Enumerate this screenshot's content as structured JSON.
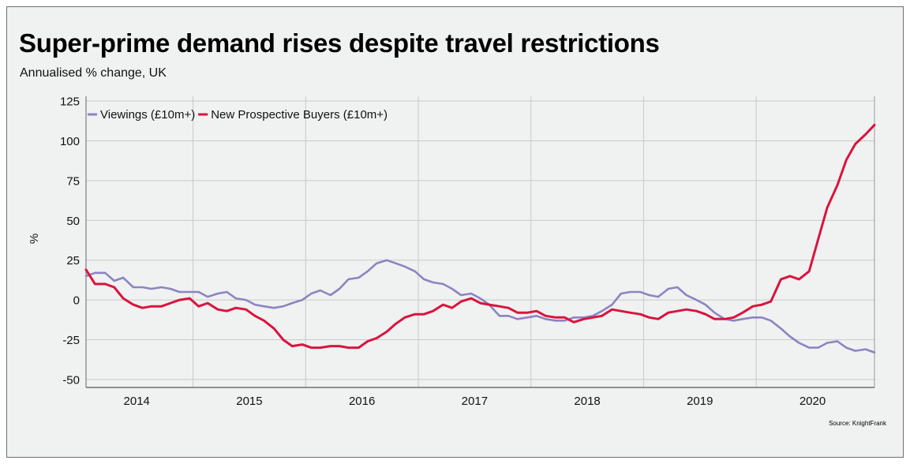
{
  "header": {
    "title": "Super-prime demand rises despite travel restrictions",
    "subtitle": "Annualised % change, UK"
  },
  "source": "Source: KnightFrank",
  "colors": {
    "viewings": "#8c84c2",
    "buyers": "#d9143e",
    "background": "#f0f1f1",
    "grid": "#c9c9c9"
  },
  "chart_data": {
    "type": "line",
    "title": "Super-prime demand rises despite travel restrictions",
    "subtitle": "Annualised % change, UK",
    "xlabel": "",
    "ylabel": "%",
    "ylim": [
      -55,
      128
    ],
    "yticks": [
      125,
      100,
      75,
      50,
      25,
      0,
      -25,
      -50
    ],
    "xlim": [
      2013.55,
      2020.55
    ],
    "x_year_boundaries": [
      2014.5,
      2015.5,
      2016.5,
      2017.5,
      2018.5,
      2019.5
    ],
    "x_tick_labels": [
      {
        "label": "2014",
        "x": 2014
      },
      {
        "label": "2015",
        "x": 2015
      },
      {
        "label": "2016",
        "x": 2016
      },
      {
        "label": "2017",
        "x": 2017
      },
      {
        "label": "2018",
        "x": 2018
      },
      {
        "label": "2019",
        "x": 2019
      },
      {
        "label": "2020",
        "x": 2020
      }
    ],
    "legend_position": "top-left",
    "grid": true,
    "series": [
      {
        "name": "Viewings (£10m+)",
        "color": "#8c84c2",
        "x": [
          2013.55,
          2013.63,
          2013.72,
          2013.8,
          2013.88,
          2013.97,
          2014.05,
          2014.13,
          2014.22,
          2014.3,
          2014.38,
          2014.47,
          2014.55,
          2014.63,
          2014.72,
          2014.8,
          2014.88,
          2014.97,
          2015.05,
          2015.13,
          2015.22,
          2015.3,
          2015.38,
          2015.47,
          2015.55,
          2015.63,
          2015.72,
          2015.8,
          2015.88,
          2015.97,
          2016.05,
          2016.13,
          2016.22,
          2016.3,
          2016.38,
          2016.47,
          2016.55,
          2016.63,
          2016.72,
          2016.8,
          2016.88,
          2016.97,
          2017.05,
          2017.13,
          2017.22,
          2017.3,
          2017.38,
          2017.47,
          2017.55,
          2017.63,
          2017.72,
          2017.8,
          2017.88,
          2017.97,
          2018.05,
          2018.13,
          2018.22,
          2018.3,
          2018.38,
          2018.47,
          2018.55,
          2018.63,
          2018.72,
          2018.8,
          2018.88,
          2018.97,
          2019.05,
          2019.13,
          2019.22,
          2019.3,
          2019.38,
          2019.47,
          2019.55,
          2019.63,
          2019.72,
          2019.8,
          2019.88,
          2019.97,
          2020.05,
          2020.13,
          2020.22,
          2020.3,
          2020.38,
          2020.47,
          2020.55
        ],
        "values": [
          15,
          17,
          17,
          12,
          14,
          8,
          8,
          7,
          8,
          7,
          5,
          5,
          5,
          2,
          4,
          5,
          1,
          0,
          -3,
          -4,
          -5,
          -4,
          -2,
          0,
          4,
          6,
          3,
          7,
          13,
          14,
          18,
          23,
          25,
          23,
          21,
          18,
          13,
          11,
          10,
          7,
          3,
          4,
          1,
          -3,
          -10,
          -10,
          -12,
          -11,
          -10,
          -12,
          -13,
          -13,
          -11,
          -11,
          -10,
          -7,
          -3,
          4,
          5,
          5,
          3,
          2,
          7,
          8,
          3,
          0,
          -3,
          -8,
          -12,
          -13,
          -12,
          -11,
          -11,
          -13,
          -18,
          -23,
          -27,
          -30,
          -30,
          -27,
          -26,
          -30,
          -32,
          -31,
          -33
        ]
      },
      {
        "name": "New Prospective Buyers (£10m+)",
        "color": "#d9143e",
        "x": [
          2013.55,
          2013.63,
          2013.72,
          2013.8,
          2013.88,
          2013.97,
          2014.05,
          2014.13,
          2014.22,
          2014.3,
          2014.38,
          2014.47,
          2014.55,
          2014.63,
          2014.72,
          2014.8,
          2014.88,
          2014.97,
          2015.05,
          2015.13,
          2015.22,
          2015.3,
          2015.38,
          2015.47,
          2015.55,
          2015.63,
          2015.72,
          2015.8,
          2015.88,
          2015.97,
          2016.05,
          2016.13,
          2016.22,
          2016.3,
          2016.38,
          2016.47,
          2016.55,
          2016.63,
          2016.72,
          2016.8,
          2016.88,
          2016.97,
          2017.05,
          2017.13,
          2017.22,
          2017.3,
          2017.38,
          2017.47,
          2017.55,
          2017.63,
          2017.72,
          2017.8,
          2017.88,
          2017.97,
          2018.05,
          2018.13,
          2018.22,
          2018.3,
          2018.38,
          2018.47,
          2018.55,
          2018.63,
          2018.72,
          2018.8,
          2018.88,
          2018.97,
          2019.05,
          2019.13,
          2019.22,
          2019.3,
          2019.38,
          2019.47,
          2019.55,
          2019.63,
          2019.72,
          2019.8,
          2019.88,
          2019.97,
          2020.05,
          2020.13,
          2020.22,
          2020.3,
          2020.38,
          2020.47,
          2020.55
        ],
        "values": [
          19,
          10,
          10,
          8,
          1,
          -3,
          -5,
          -4,
          -4,
          -2,
          0,
          1,
          -4,
          -2,
          -6,
          -7,
          -5,
          -6,
          -10,
          -13,
          -18,
          -25,
          -29,
          -28,
          -30,
          -30,
          -29,
          -29,
          -30,
          -30,
          -26,
          -24,
          -20,
          -15,
          -11,
          -9,
          -9,
          -7,
          -3,
          -5,
          -1,
          1,
          -2,
          -3,
          -4,
          -5,
          -8,
          -8,
          -7,
          -10,
          -11,
          -11,
          -14,
          -12,
          -11,
          -10,
          -6,
          -7,
          -8,
          -9,
          -11,
          -12,
          -8,
          -7,
          -6,
          -7,
          -9,
          -12,
          -12,
          -11,
          -8,
          -4,
          -3,
          -1,
          13,
          15,
          13,
          18,
          38,
          58,
          72,
          88,
          98,
          104,
          110
        ]
      }
    ]
  }
}
